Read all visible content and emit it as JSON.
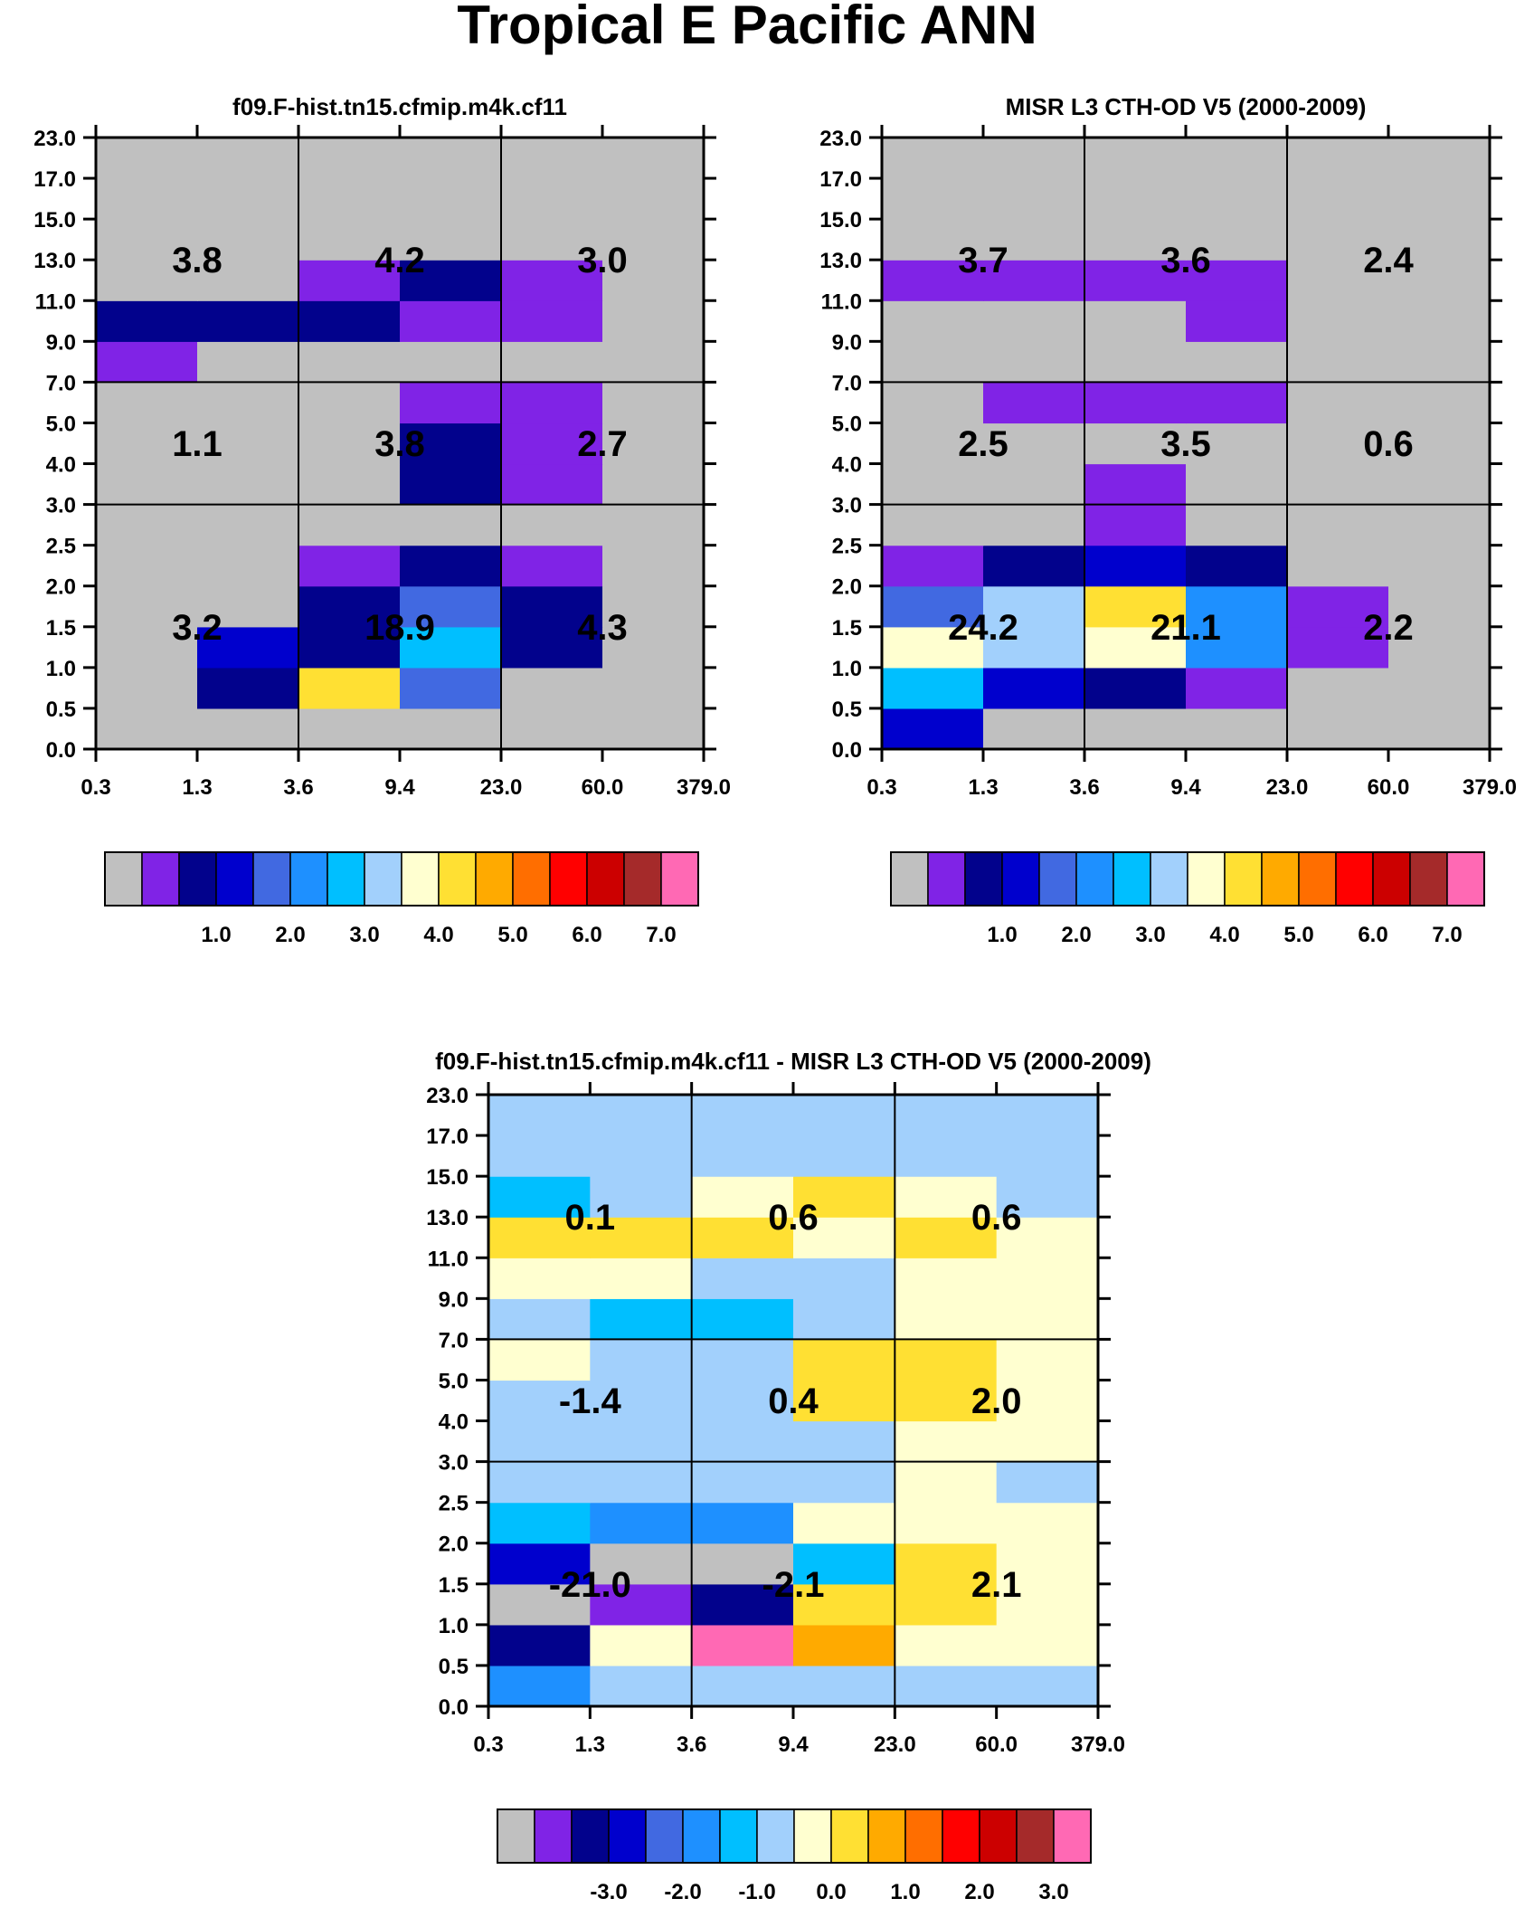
{
  "figure_title": "Tropical E Pacific ANN",
  "colors": {
    "background": "#ffffff",
    "palette": [
      "#c0c0c0",
      "#8023e6",
      "#02028c",
      "#0000cd",
      "#4169e1",
      "#1e90ff",
      "#00bfff",
      "#a2d0fc",
      "#ffffd0",
      "#ffe033",
      "#ffaa00",
      "#ff6e00",
      "#ff0000",
      "#cc0000",
      "#a52a2a",
      "#ff69b4"
    ]
  },
  "chart_data": [
    {
      "id": "model",
      "type": "heatmap",
      "title": "f09.F-hist.tn15.cfmip.m4k.cf11",
      "x_ticks": [
        "0.3",
        "1.3",
        "3.6",
        "9.4",
        "23.0",
        "60.0",
        "379.0"
      ],
      "y_ticks": [
        "0.0",
        "0.5",
        "1.0",
        "1.5",
        "2.0",
        "2.5",
        "3.0",
        "4.0",
        "5.0",
        "7.0",
        "9.0",
        "11.0",
        "13.0",
        "15.0",
        "17.0",
        "23.0"
      ],
      "cells_bottom_to_top": [
        [
          0,
          0,
          0,
          0,
          0,
          0
        ],
        [
          0,
          2,
          9,
          4,
          0,
          0
        ],
        [
          0,
          3,
          2,
          6,
          2,
          0
        ],
        [
          0,
          0,
          2,
          4,
          2,
          0
        ],
        [
          0,
          0,
          1,
          2,
          1,
          0
        ],
        [
          0,
          0,
          0,
          0,
          0,
          0
        ],
        [
          0,
          0,
          0,
          2,
          1,
          0
        ],
        [
          0,
          0,
          0,
          2,
          1,
          0
        ],
        [
          0,
          0,
          0,
          1,
          1,
          0
        ],
        [
          1,
          0,
          0,
          0,
          0,
          0
        ],
        [
          2,
          2,
          2,
          1,
          1,
          0
        ],
        [
          0,
          0,
          1,
          2,
          1,
          0
        ],
        [
          0,
          0,
          0,
          0,
          0,
          0
        ],
        [
          0,
          0,
          0,
          0,
          0,
          0
        ],
        [
          0,
          0,
          0,
          0,
          0,
          0
        ]
      ],
      "annotations": [
        {
          "col": 0,
          "row": 0,
          "text": "3.8"
        },
        {
          "col": 1,
          "row": 0,
          "text": "4.2"
        },
        {
          "col": 2,
          "row": 0,
          "text": "3.0"
        },
        {
          "col": 0,
          "row": 1,
          "text": "1.1"
        },
        {
          "col": 1,
          "row": 1,
          "text": "3.8"
        },
        {
          "col": 2,
          "row": 1,
          "text": "2.7"
        },
        {
          "col": 0,
          "row": 2,
          "text": "3.2"
        },
        {
          "col": 1,
          "row": 2,
          "text": "18.9"
        },
        {
          "col": 2,
          "row": 2,
          "text": "4.3"
        }
      ],
      "colorbar_labels": [
        "1.0",
        "2.0",
        "3.0",
        "4.0",
        "5.0",
        "6.0",
        "7.0"
      ]
    },
    {
      "id": "obs",
      "type": "heatmap",
      "title": "MISR L3 CTH-OD V5 (2000-2009)",
      "x_ticks": [
        "0.3",
        "1.3",
        "3.6",
        "9.4",
        "23.0",
        "60.0",
        "379.0"
      ],
      "y_ticks": [
        "0.0",
        "0.5",
        "1.0",
        "1.5",
        "2.0",
        "2.5",
        "3.0",
        "4.0",
        "5.0",
        "7.0",
        "9.0",
        "11.0",
        "13.0",
        "15.0",
        "17.0",
        "23.0"
      ],
      "cells_bottom_to_top": [
        [
          3,
          0,
          0,
          0,
          0,
          0
        ],
        [
          6,
          3,
          2,
          1,
          0,
          0
        ],
        [
          8,
          7,
          8,
          5,
          1,
          0
        ],
        [
          4,
          7,
          9,
          5,
          1,
          0
        ],
        [
          1,
          2,
          3,
          2,
          0,
          0
        ],
        [
          0,
          0,
          1,
          0,
          0,
          0
        ],
        [
          0,
          0,
          1,
          0,
          0,
          0
        ],
        [
          0,
          0,
          0,
          0,
          0,
          0
        ],
        [
          0,
          1,
          1,
          1,
          0,
          0
        ],
        [
          0,
          0,
          0,
          0,
          0,
          0
        ],
        [
          0,
          0,
          0,
          1,
          0,
          0
        ],
        [
          1,
          1,
          1,
          1,
          0,
          0
        ],
        [
          0,
          0,
          0,
          0,
          0,
          0
        ],
        [
          0,
          0,
          0,
          0,
          0,
          0
        ],
        [
          0,
          0,
          0,
          0,
          0,
          0
        ]
      ],
      "annotations": [
        {
          "col": 0,
          "row": 0,
          "text": "3.7"
        },
        {
          "col": 1,
          "row": 0,
          "text": "3.6"
        },
        {
          "col": 2,
          "row": 0,
          "text": "2.4"
        },
        {
          "col": 0,
          "row": 1,
          "text": "2.5"
        },
        {
          "col": 1,
          "row": 1,
          "text": "3.5"
        },
        {
          "col": 2,
          "row": 1,
          "text": "0.6"
        },
        {
          "col": 0,
          "row": 2,
          "text": "24.2"
        },
        {
          "col": 1,
          "row": 2,
          "text": "21.1"
        },
        {
          "col": 2,
          "row": 2,
          "text": "2.2"
        }
      ],
      "colorbar_labels": [
        "1.0",
        "2.0",
        "3.0",
        "4.0",
        "5.0",
        "6.0",
        "7.0"
      ]
    },
    {
      "id": "diff",
      "type": "heatmap",
      "title": "f09.F-hist.tn15.cfmip.m4k.cf11 - MISR L3 CTH-OD V5 (2000-2009)",
      "x_ticks": [
        "0.3",
        "1.3",
        "3.6",
        "9.4",
        "23.0",
        "60.0",
        "379.0"
      ],
      "y_ticks": [
        "0.0",
        "0.5",
        "1.0",
        "1.5",
        "2.0",
        "2.5",
        "3.0",
        "4.0",
        "5.0",
        "7.0",
        "9.0",
        "11.0",
        "13.0",
        "15.0",
        "17.0",
        "23.0"
      ],
      "cells_bottom_to_top": [
        [
          5,
          7,
          7,
          7,
          7,
          7
        ],
        [
          2,
          8,
          15,
          10,
          8,
          8
        ],
        [
          0,
          1,
          2,
          9,
          9,
          8
        ],
        [
          3,
          0,
          0,
          6,
          9,
          8
        ],
        [
          6,
          5,
          5,
          8,
          8,
          8
        ],
        [
          7,
          7,
          7,
          7,
          8,
          7
        ],
        [
          7,
          7,
          7,
          7,
          8,
          8
        ],
        [
          7,
          7,
          7,
          9,
          9,
          8
        ],
        [
          8,
          7,
          7,
          9,
          9,
          8
        ],
        [
          7,
          6,
          6,
          7,
          8,
          8
        ],
        [
          8,
          8,
          7,
          7,
          8,
          8
        ],
        [
          9,
          9,
          9,
          8,
          9,
          8
        ],
        [
          6,
          7,
          8,
          9,
          8,
          7
        ],
        [
          7,
          7,
          7,
          7,
          7,
          7
        ],
        [
          7,
          7,
          7,
          7,
          7,
          7
        ]
      ],
      "annotations": [
        {
          "col": 0,
          "row": 0,
          "text": "0.1"
        },
        {
          "col": 1,
          "row": 0,
          "text": "0.6"
        },
        {
          "col": 2,
          "row": 0,
          "text": "0.6"
        },
        {
          "col": 0,
          "row": 1,
          "text": "-1.4"
        },
        {
          "col": 1,
          "row": 1,
          "text": "0.4"
        },
        {
          "col": 2,
          "row": 1,
          "text": "2.0"
        },
        {
          "col": 0,
          "row": 2,
          "text": "-21.0"
        },
        {
          "col": 1,
          "row": 2,
          "text": "-2.1"
        },
        {
          "col": 2,
          "row": 2,
          "text": "2.1"
        }
      ],
      "colorbar_labels": [
        "-3.0",
        "-2.0",
        "-1.0",
        "0.0",
        "1.0",
        "2.0",
        "3.0"
      ]
    }
  ]
}
